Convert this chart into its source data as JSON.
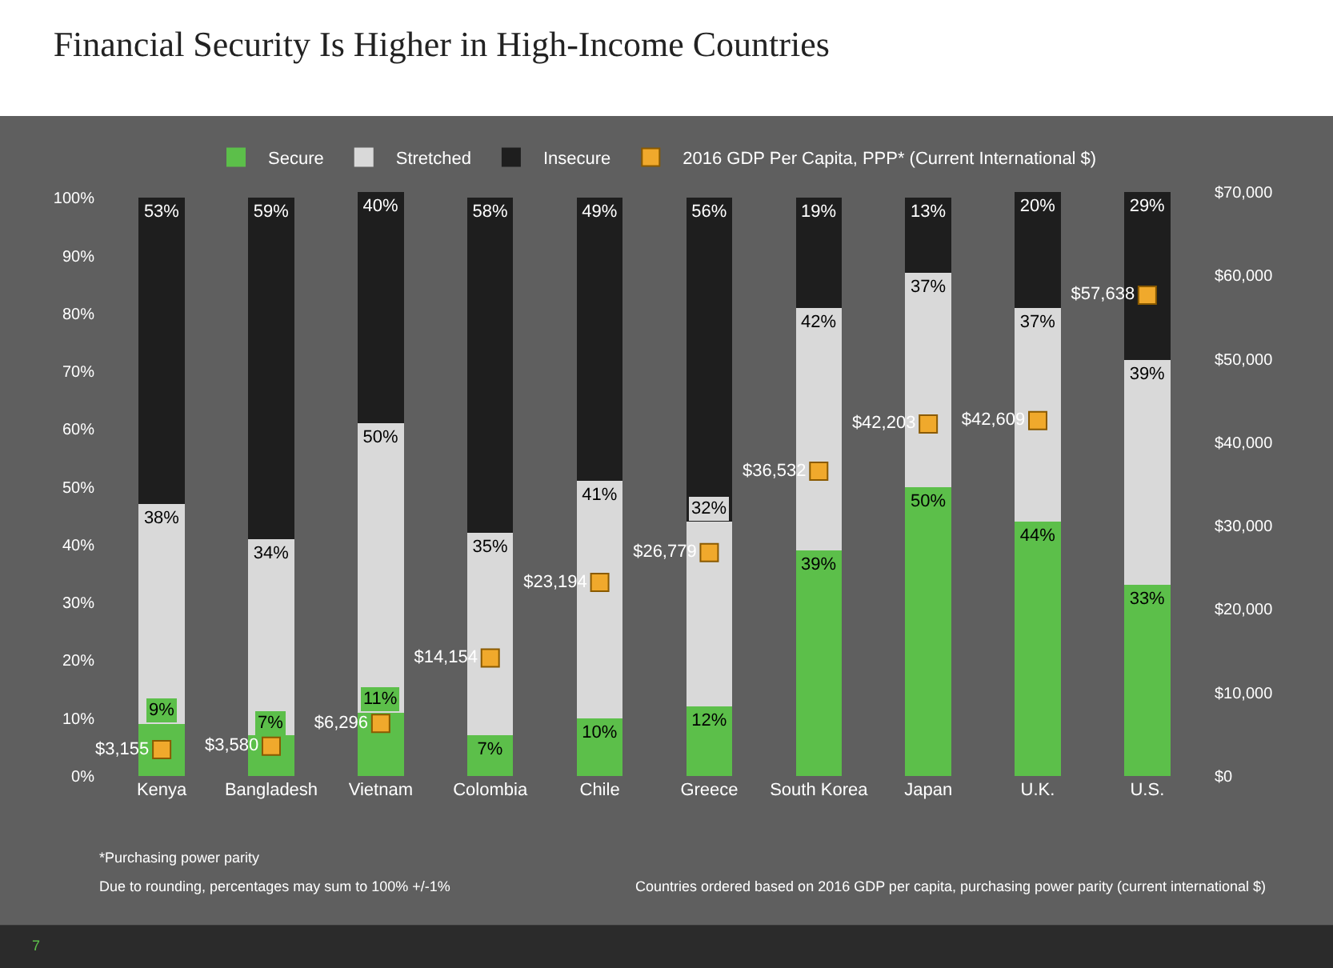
{
  "chart_data": {
    "type": "bar",
    "stacked": true,
    "title": "Financial Security Is Higher in High-Income Countries",
    "categories": [
      "Kenya",
      "Bangladesh",
      "Vietnam",
      "Colombia",
      "Chile",
      "Greece",
      "South Korea",
      "Japan",
      "U.K.",
      "U.S."
    ],
    "series": [
      {
        "name": "Secure",
        "color": "#5cbf4a",
        "values": [
          9,
          7,
          11,
          7,
          10,
          12,
          39,
          50,
          44,
          33
        ],
        "value_labels": [
          "9%",
          "7%",
          "11%",
          "7%",
          "10%",
          "12%",
          "39%",
          "50%",
          "44%",
          "33%"
        ]
      },
      {
        "name": "Stretched",
        "color": "#d9d9d9",
        "values": [
          38,
          34,
          50,
          35,
          41,
          32,
          42,
          37,
          37,
          39
        ],
        "value_labels": [
          "38%",
          "34%",
          "50%",
          "35%",
          "41%",
          "32%",
          "42%",
          "37%",
          "37%",
          "39%"
        ]
      },
      {
        "name": "Insecure",
        "color": "#1e1e1e",
        "values": [
          53,
          59,
          40,
          58,
          49,
          56,
          19,
          13,
          20,
          29
        ],
        "value_labels": [
          "53%",
          "59%",
          "40%",
          "58%",
          "49%",
          "56%",
          "19%",
          "13%",
          "20%",
          "29%"
        ]
      },
      {
        "name": "2016 GDP Per Capita, PPP* (Current International $)",
        "type": "scatter",
        "axis": "y2",
        "color": "#f0a92c",
        "marker": "square",
        "values": [
          3155,
          3580,
          6296,
          14154,
          23194,
          26779,
          36532,
          42203,
          42609,
          57638
        ],
        "value_labels": [
          "$3,155",
          "$3,580",
          "$6,296",
          "$14,154",
          "$23,194",
          "$26,779",
          "$36,532",
          "$42,203",
          "$42,609",
          "$57,638"
        ]
      }
    ],
    "ylim": [
      0,
      101
    ],
    "yticks": [
      {
        "value": 0,
        "label": "0%"
      },
      {
        "value": 10,
        "label": "10%"
      },
      {
        "value": 20,
        "label": "20%"
      },
      {
        "value": 30,
        "label": "30%"
      },
      {
        "value": 40,
        "label": "40%"
      },
      {
        "value": 50,
        "label": "50%"
      },
      {
        "value": 60,
        "label": "60%"
      },
      {
        "value": 70,
        "label": "70%"
      },
      {
        "value": 80,
        "label": "80%"
      },
      {
        "value": 90,
        "label": "90%"
      },
      {
        "value": 100,
        "label": "100%"
      }
    ],
    "y2lim": [
      0,
      70000
    ],
    "y2ticks": [
      {
        "value": 0,
        "label": "$0"
      },
      {
        "value": 10000,
        "label": "$10,000"
      },
      {
        "value": 20000,
        "label": "$20,000"
      },
      {
        "value": 30000,
        "label": "$30,000"
      },
      {
        "value": 40000,
        "label": "$40,000"
      },
      {
        "value": 50000,
        "label": "$50,000"
      },
      {
        "value": 60000,
        "label": "$60,000"
      },
      {
        "value": 70000,
        "label": "$70,000"
      }
    ],
    "legend": "top",
    "annotations": [
      "*Purchasing power parity",
      "Due to rounding, percentages may sum to 100% +/-1%",
      "Countries ordered based on 2016 GDP per capita, purchasing power parity (current international $)",
      "7"
    ]
  }
}
